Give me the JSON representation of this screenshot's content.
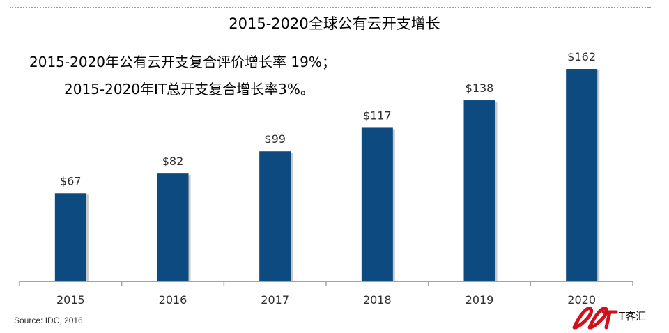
{
  "header": {
    "title": "2015-2020全球公有云开支增长"
  },
  "notes": [
    "2015-2020年公有云开支复合评价增长率 19%；",
    "2015-2020年IT总开支复合增长率3%。"
  ],
  "source": "Source: IDC, 2016",
  "logo_text": "T客汇",
  "chart_data": {
    "type": "bar",
    "title": "2015-2020全球公有云开支增长",
    "xlabel": "",
    "ylabel": "",
    "categories": [
      "2015",
      "2016",
      "2017",
      "2018",
      "2019",
      "2020"
    ],
    "values": [
      67,
      82,
      99,
      117,
      138,
      162
    ],
    "value_labels": [
      "$67",
      "$82",
      "$99",
      "$117",
      "$138",
      "$162"
    ],
    "ylim": [
      0,
      162
    ],
    "grid": false,
    "legend": "none",
    "colors": {
      "bar": "#0d4a80",
      "bar_shadow": "#c9c9c9",
      "axis": "#a3a3a3",
      "label": "#2e2e2e"
    }
  }
}
